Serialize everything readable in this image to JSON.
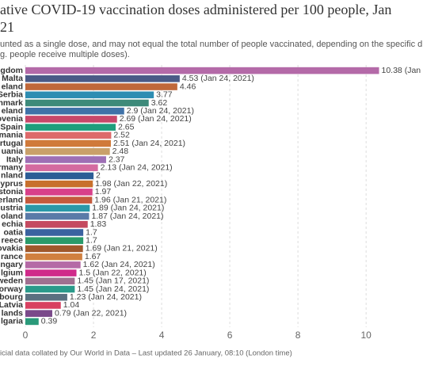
{
  "chart_data": {
    "type": "bar",
    "orientation": "horizontal",
    "title": [
      "ative COVID-19 vaccination doses administered per 100 people, Jan",
      "21"
    ],
    "subtitle": [
      "unted as a single dose, and may not equal the total number of people vaccinated, depending on the specific d",
      "g. people receive multiple doses)."
    ],
    "footer": "icial data collated by Our World in Data – Last updated 26 January, 08:10 (London time)",
    "categories": [
      "gdom",
      "Malta",
      "eland",
      "Serbia",
      "nmark",
      "eland",
      "ovenia",
      "Spain",
      "mania",
      "rtugal",
      "uania",
      "Italy",
      "rmany",
      "nland",
      "yprus",
      "stonia",
      "erland",
      "ustria",
      "oland",
      "echia",
      "oatia",
      "reece",
      "ovakia",
      "rance",
      "ngary",
      "lgium",
      "weden",
      "orway",
      "bourg",
      "Latvia",
      "lands",
      "lgaria"
    ],
    "values": [
      10.38,
      4.53,
      4.46,
      3.77,
      3.62,
      2.9,
      2.69,
      2.65,
      2.52,
      2.51,
      2.48,
      2.37,
      2.13,
      2,
      1.98,
      1.97,
      1.96,
      1.89,
      1.87,
      1.83,
      1.7,
      1.7,
      1.69,
      1.67,
      1.62,
      1.5,
      1.45,
      1.45,
      1.23,
      1.04,
      0.79,
      0.39
    ],
    "value_labels": [
      "10.38 (Jan",
      "4.53 (Jan 24, 2021)",
      "4.46",
      "3.77",
      "3.62",
      "2.9 (Jan 24, 2021)",
      "2.69 (Jan 24, 2021)",
      "2.65",
      "2.52",
      "2.51 (Jan 24, 2021)",
      "2.48",
      "2.37",
      "2.13 (Jan 24, 2021)",
      "2",
      "1.98 (Jan 22, 2021)",
      "1.97",
      "1.96 (Jan 21, 2021)",
      "1.89 (Jan 24, 2021)",
      "1.87 (Jan 24, 2021)",
      "1.83",
      "1.7",
      "1.7",
      "1.69 (Jan 21, 2021)",
      "1.67",
      "1.62 (Jan 24, 2021)",
      "1.5 (Jan 22, 2021)",
      "1.45 (Jan 17, 2021)",
      "1.45 (Jan 24, 2021)",
      "1.23 (Jan 24, 2021)",
      "1.04",
      "0.79 (Jan 22, 2021)",
      "0.39"
    ],
    "colors": [
      "#b46aa8",
      "#4a5a86",
      "#c0683a",
      "#2e8db2",
      "#3d8a7a",
      "#3f72a8",
      "#c8476a",
      "#1f9e7c",
      "#dd6a6a",
      "#d07a3a",
      "#c9a06a",
      "#9e6fb5",
      "#d46aa0",
      "#2c5d96",
      "#c8702c",
      "#d8408a",
      "#c45a3c",
      "#2a98a8",
      "#5a7aa8",
      "#c44a60",
      "#3a62a0",
      "#2a9a6a",
      "#a0582c",
      "#d08040",
      "#b56aa6",
      "#d02a8a",
      "#a07090",
      "#2a9a8a",
      "#5a7080",
      "#d84060",
      "#7a4a8a",
      "#2a9a7a"
    ],
    "xlim": [
      0,
      11.67
    ],
    "xticks": [
      0,
      2,
      4,
      6,
      8,
      10
    ],
    "grid": true
  }
}
